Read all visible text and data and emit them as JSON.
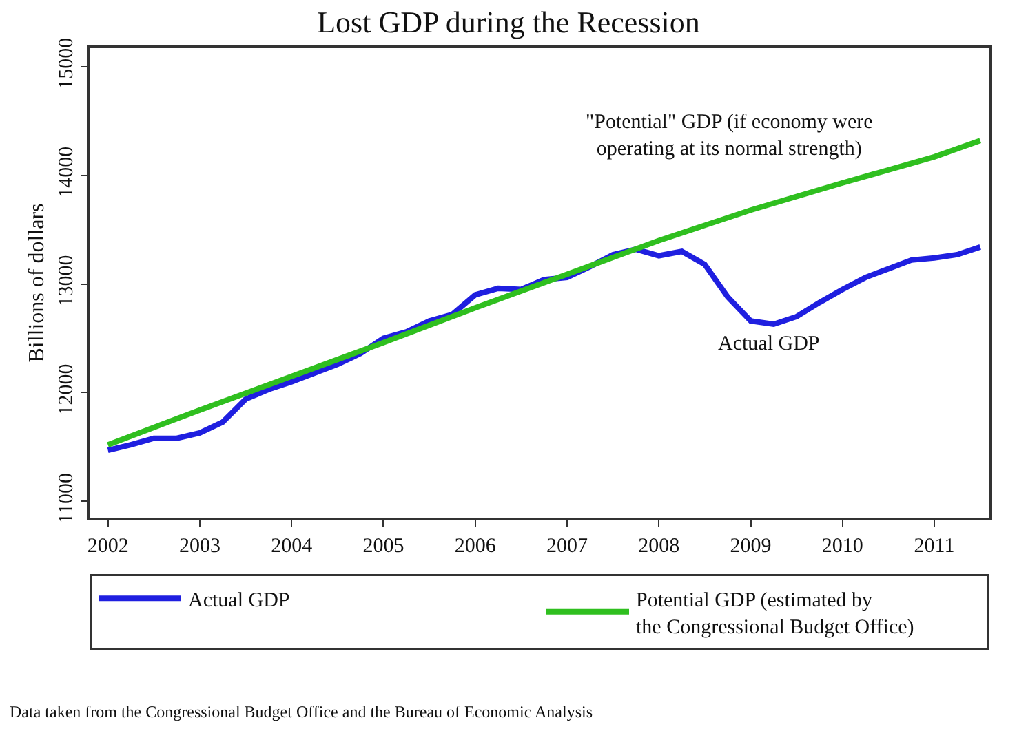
{
  "chart_data": {
    "type": "line",
    "title": "Lost GDP during the Recession",
    "ylabel": "Billions of dollars",
    "xlim": [
      2001.8,
      2011.6
    ],
    "xticks": [
      2002,
      2003,
      2004,
      2005,
      2006,
      2007,
      2008,
      2009,
      2010,
      2011
    ],
    "ylim": [
      10850,
      15170
    ],
    "yticks": [
      11000,
      12000,
      13000,
      14000,
      15000
    ],
    "legend": "bottom",
    "marker": "none",
    "line_style": "solid",
    "series": [
      {
        "name": "Actual GDP",
        "color": "#1f1fe0",
        "x": [
          2002,
          2002.25,
          2002.5,
          2002.75,
          2003,
          2003.25,
          2003.5,
          2003.75,
          2004,
          2004.25,
          2004.5,
          2004.75,
          2005,
          2005.25,
          2005.5,
          2005.75,
          2006,
          2006.25,
          2006.5,
          2006.75,
          2007,
          2007.25,
          2007.5,
          2007.75,
          2008,
          2008.25,
          2008.5,
          2008.75,
          2009,
          2009.25,
          2009.5,
          2009.75,
          2010,
          2010.25,
          2010.5,
          2010.75,
          2011,
          2011.25,
          2011.5
        ],
        "values": [
          11470,
          11520,
          11580,
          11580,
          11630,
          11730,
          11940,
          12030,
          12100,
          12180,
          12260,
          12360,
          12500,
          12560,
          12660,
          12720,
          12900,
          12960,
          12950,
          13040,
          13060,
          13160,
          13270,
          13320,
          13260,
          13300,
          13180,
          12880,
          12660,
          12630,
          12700,
          12830,
          12950,
          13060,
          13140,
          13220,
          13240,
          13270,
          13340
        ]
      },
      {
        "name": "Potential GDP (estimated by\nthe Congressional Budget Office)",
        "color": "#2fbf1f",
        "x": [
          2002,
          2003,
          2004,
          2005,
          2006,
          2007,
          2008,
          2009,
          2010,
          2011,
          2011.5
        ],
        "values": [
          11520,
          11840,
          12150,
          12460,
          12780,
          13090,
          13400,
          13680,
          13930,
          14170,
          14320
        ]
      }
    ],
    "annotations": [
      "\"Potential\" GDP (if economy were\noperating at its normal strength)",
      "Actual GDP",
      "Data taken from the Congressional Budget Office and the Bureau of Economic Analysis"
    ]
  }
}
